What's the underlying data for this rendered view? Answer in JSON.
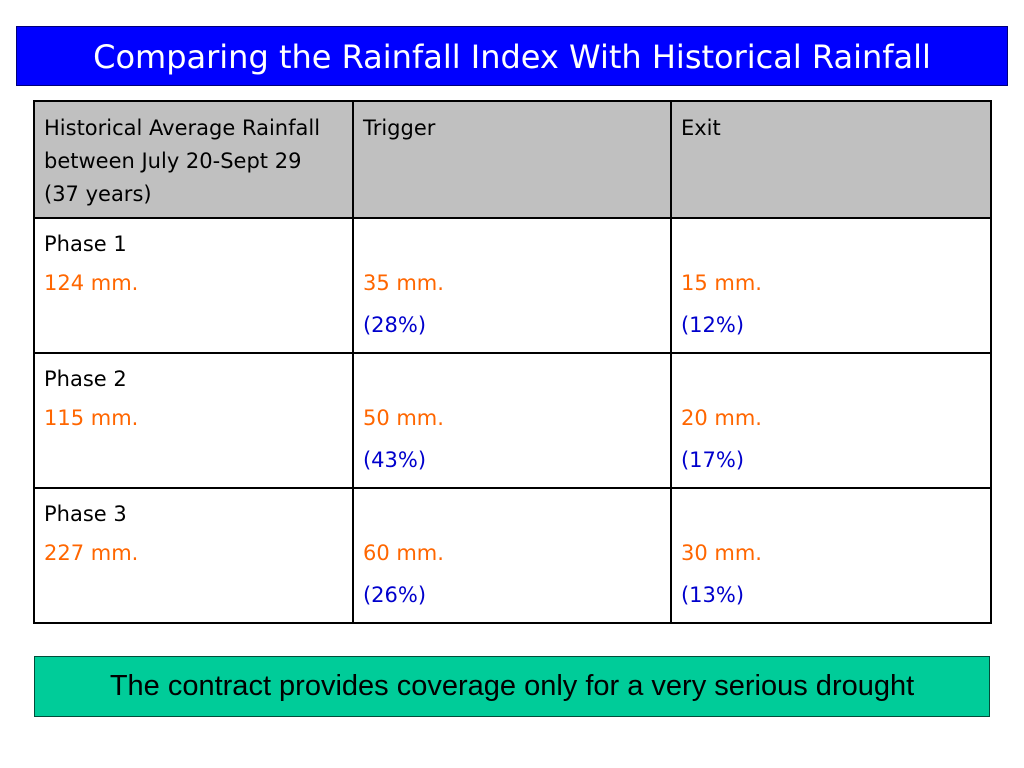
{
  "title": "Comparing the Rainfall Index With Historical Rainfall",
  "table": {
    "headers": [
      "Historical Average Rainfall between July 20-Sept 29 (37 years)",
      "Trigger",
      "Exit"
    ],
    "rows": [
      {
        "phase": "Phase 1",
        "historical": "124 mm.",
        "trigger_mm": "35 mm.",
        "trigger_pct": "(28%)",
        "exit_mm": "15 mm.",
        "exit_pct": "(12%)"
      },
      {
        "phase": "Phase 2",
        "historical": "115 mm.",
        "trigger_mm": "50 mm.",
        "trigger_pct": "(43%)",
        "exit_mm": "20 mm.",
        "exit_pct": "(17%)"
      },
      {
        "phase": "Phase 3",
        "historical": "227 mm.",
        "trigger_mm": "60 mm.",
        "trigger_pct": "(26%)",
        "exit_mm": "30 mm.",
        "exit_pct": "(13%)"
      }
    ]
  },
  "note": "The contract provides coverage only for a very serious drought",
  "colors": {
    "title_bg": "#0000ff",
    "header_bg": "#c0c0c0",
    "value_orange": "#ff6600",
    "value_blue": "#0000cc",
    "note_bg": "#00cc99"
  }
}
